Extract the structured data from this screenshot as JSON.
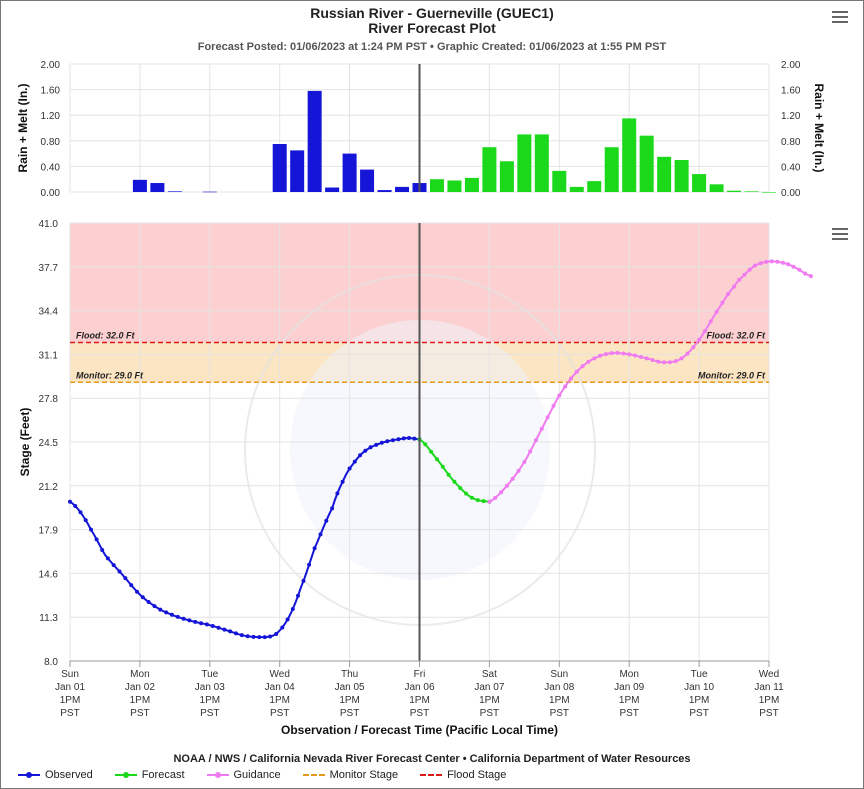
{
  "header": {
    "title": "Russian River - Guerneville (GUEC1)",
    "subtitle": "River Forecast Plot",
    "posted": "Forecast Posted: 01/06/2023 at 1:24 PM PST • Graphic Created: 01/06/2023 at 1:55 PM PST"
  },
  "footer": {
    "credit": "NOAA / NWS / California Nevada River Forecast Center  •  California Department of Water Resources"
  },
  "icons": {
    "menu": "hamburger-menu-icon"
  },
  "colors": {
    "observed": "#1515d8",
    "forecast": "#1bd81b",
    "guidance": "#f07af0",
    "monitor": "#e69a1a",
    "flood": "#dd1a1a",
    "flood_zone": "#fcd0d0",
    "monitor_zone": "#fce5c2"
  },
  "chart_data": [
    {
      "type": "bar",
      "ylabel": "Rain + Melt (In.)",
      "ylabel_right": "Rain + Melt (In.)",
      "ylim": [
        0,
        2.0
      ],
      "yticks": [
        "0.00",
        "0.40",
        "0.80",
        "1.20",
        "1.60",
        "2.00"
      ],
      "x_unit": "days since Jan 01 1PM PST (6-hour bars)",
      "series": [
        {
          "name": "Observed",
          "color": "#1515d8",
          "x": [
            1.0,
            1.25,
            1.5,
            2.0,
            3.0,
            3.25,
            3.5,
            3.75,
            4.0,
            4.25,
            4.5,
            4.75,
            5.0
          ],
          "values": [
            0.19,
            0.14,
            0.01,
            0.005,
            0.75,
            0.65,
            1.58,
            0.07,
            0.6,
            0.35,
            0.03,
            0.08,
            0.14
          ]
        },
        {
          "name": "Forecast",
          "color": "#1bd81b",
          "x": [
            5.25,
            5.5,
            5.75,
            6.0,
            6.25,
            6.5,
            6.75,
            7.0,
            7.25,
            7.5,
            7.75,
            8.0,
            8.25,
            8.5,
            8.75,
            9.0,
            9.25,
            9.5,
            9.75,
            10.0
          ],
          "values": [
            0.2,
            0.18,
            0.22,
            0.7,
            0.48,
            0.9,
            0.9,
            0.33,
            0.08,
            0.17,
            0.7,
            1.15,
            0.88,
            0.55,
            0.5,
            0.28,
            0.12,
            0.02,
            0.01,
            0.0
          ]
        }
      ]
    },
    {
      "type": "line",
      "xlabel": "Observation / Forecast Time (Pacific Local Time)",
      "ylabel": "Stage (Feet)",
      "ylim": [
        8.0,
        41.0
      ],
      "yticks": [
        "8.0",
        "11.3",
        "14.6",
        "17.9",
        "21.2",
        "24.5",
        "27.8",
        "31.1",
        "34.4",
        "37.7",
        "41.0"
      ],
      "xticks": [
        [
          "Sun",
          "Jan 01",
          "1PM",
          "PST"
        ],
        [
          "Mon",
          "Jan 02",
          "1PM",
          "PST"
        ],
        [
          "Tue",
          "Jan 03",
          "1PM",
          "PST"
        ],
        [
          "Wed",
          "Jan 04",
          "1PM",
          "PST"
        ],
        [
          "Thu",
          "Jan 05",
          "1PM",
          "PST"
        ],
        [
          "Fri",
          "Jan 06",
          "1PM",
          "PST"
        ],
        [
          "Sat",
          "Jan 07",
          "1PM",
          "PST"
        ],
        [
          "Sun",
          "Jan 08",
          "1PM",
          "PST"
        ],
        [
          "Mon",
          "Jan 09",
          "1PM",
          "PST"
        ],
        [
          "Tue",
          "Jan 10",
          "1PM",
          "PST"
        ],
        [
          "Wed",
          "Jan 11",
          "1PM",
          "PST"
        ]
      ],
      "current_time_x": 5.0,
      "thresholds": [
        {
          "name": "Flood Stage",
          "label": "Flood: 32.0 Ft",
          "value": 32.0,
          "color": "#dd1a1a"
        },
        {
          "name": "Monitor Stage",
          "label": "Monitor: 29.0 Ft",
          "value": 29.0,
          "color": "#e69a1a"
        }
      ],
      "series": [
        {
          "name": "Observed",
          "color": "#1515d8",
          "x": [
            0.0,
            0.15,
            0.3,
            0.5,
            0.75,
            1.0,
            1.25,
            1.5,
            1.75,
            2.0,
            2.25,
            2.5,
            2.75,
            2.9,
            3.0,
            3.15,
            3.3,
            3.5,
            3.75,
            3.9,
            4.0,
            4.15,
            4.3,
            4.5,
            4.7,
            4.85,
            5.0
          ],
          "values": [
            20.0,
            19.2,
            17.9,
            16.0,
            14.5,
            13.0,
            12.0,
            11.4,
            11.0,
            10.7,
            10.3,
            9.9,
            9.8,
            9.9,
            10.3,
            11.5,
            13.5,
            16.5,
            19.5,
            21.5,
            22.5,
            23.5,
            24.1,
            24.5,
            24.7,
            24.8,
            24.7
          ]
        },
        {
          "name": "Forecast",
          "color": "#1bd81b",
          "x": [
            5.0,
            5.25,
            5.5,
            5.75,
            6.0
          ],
          "values": [
            24.7,
            23.2,
            21.5,
            20.3,
            20.0
          ]
        },
        {
          "name": "Guidance",
          "color": "#f07af0",
          "x": [
            6.0,
            6.25,
            6.5,
            6.75,
            7.0,
            7.25,
            7.5,
            7.75,
            8.0,
            8.25,
            8.5,
            8.75,
            9.0,
            9.25,
            9.5,
            9.65,
            9.8,
            10.0,
            10.2,
            10.35,
            10.6
          ],
          "values": [
            20.0,
            21.2,
            23.0,
            25.5,
            28.0,
            29.8,
            30.8,
            31.2,
            31.1,
            30.8,
            30.5,
            30.8,
            32.2,
            34.3,
            36.2,
            37.1,
            37.8,
            38.1,
            38.0,
            37.7,
            37.0
          ]
        }
      ]
    }
  ]
}
